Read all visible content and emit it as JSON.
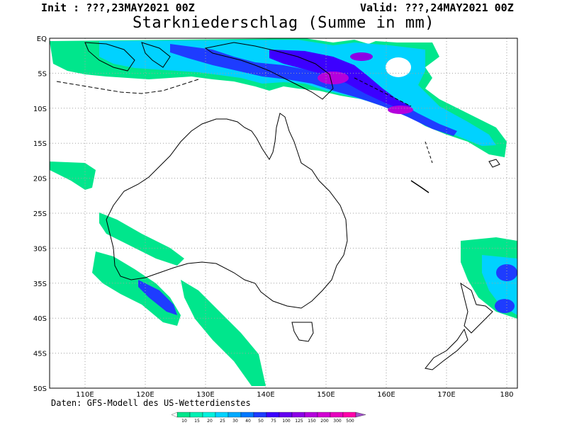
{
  "header": {
    "init": "Init : ???,23MAY2021 00Z",
    "valid": "Valid: ???,24MAY2021 00Z",
    "title": "Starkniederschlag (Summe in mm)"
  },
  "map": {
    "lat_labels": [
      "EQ",
      "5S",
      "10S",
      "15S",
      "20S",
      "25S",
      "30S",
      "35S",
      "40S",
      "45S",
      "50S"
    ],
    "lon_labels": [
      "110E",
      "120E",
      "130E",
      "140E",
      "150E",
      "160E",
      "170E",
      "180"
    ]
  },
  "credit": "Daten: GFS-Modell des US-Wetterdienstes",
  "legend": {
    "values": [
      "10",
      "15",
      "20",
      "25",
      "30",
      "40",
      "50",
      "75",
      "100",
      "125",
      "150",
      "200",
      "300",
      "500"
    ],
    "colors": [
      "#00e68c",
      "#00f0b4",
      "#00f0dc",
      "#00d2ff",
      "#00aaff",
      "#0078ff",
      "#1e3cff",
      "#3c00ff",
      "#6400f0",
      "#8c00e6",
      "#b400dc",
      "#d200d2",
      "#e600be",
      "#ff00aa",
      "#a050c8"
    ]
  }
}
